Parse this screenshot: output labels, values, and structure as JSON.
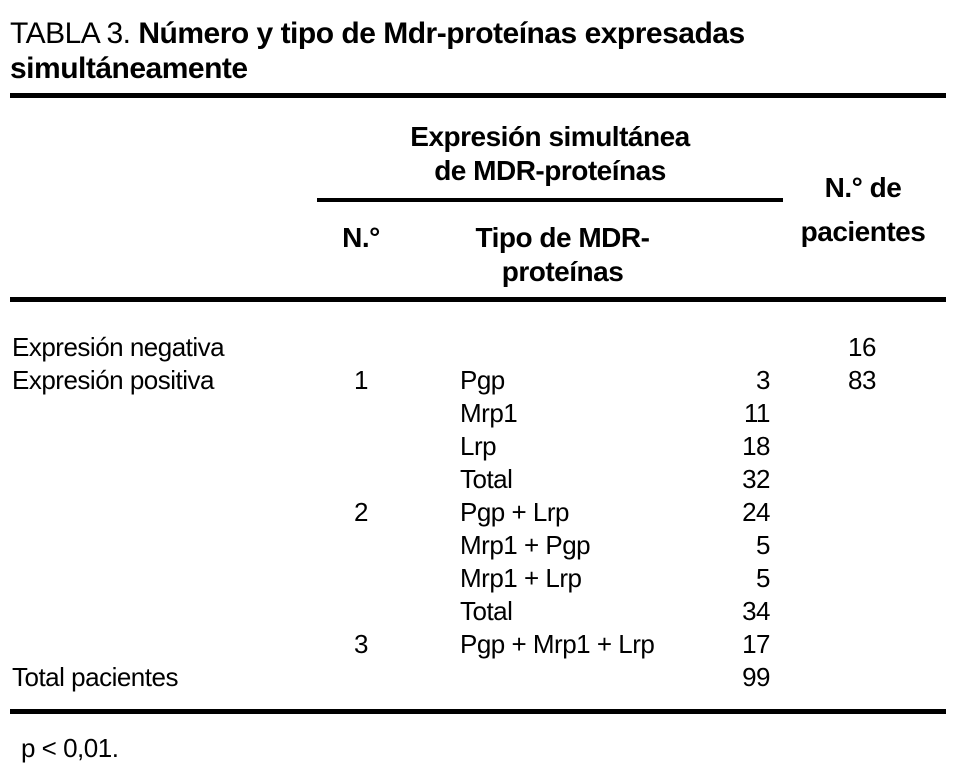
{
  "page": {
    "title_prefix": "TABLA 3.",
    "title_bold": "Número y tipo de Mdr-proteínas expresadas simultáneamente",
    "footnote": "p < 0,01."
  },
  "table": {
    "header": {
      "group_line1": "Expresión simultánea",
      "group_line2": "de MDR-proteínas",
      "col_n": "N.°",
      "col_tipo_line1": "Tipo de MDR-",
      "col_tipo_line2": "proteínas",
      "col_pacientes_line1": "N.° de",
      "col_pacientes_line2": "pacientes"
    },
    "rows": [
      {
        "label": "Expresión negativa",
        "n": "",
        "tipo": "",
        "count": "",
        "pacientes": "16"
      },
      {
        "label": "Expresión positiva",
        "n": "1",
        "tipo": "Pgp",
        "count": "3",
        "pacientes": "83"
      },
      {
        "label": "",
        "n": "",
        "tipo": "Mrp1",
        "count": "11",
        "pacientes": ""
      },
      {
        "label": "",
        "n": "",
        "tipo": "Lrp",
        "count": "18",
        "pacientes": ""
      },
      {
        "label": "",
        "n": "",
        "tipo": "Total",
        "count": "32",
        "pacientes": ""
      },
      {
        "label": "",
        "n": "2",
        "tipo": "Pgp + Lrp",
        "count": "24",
        "pacientes": ""
      },
      {
        "label": "",
        "n": "",
        "tipo": "Mrp1 + Pgp",
        "count": "5",
        "pacientes": ""
      },
      {
        "label": "",
        "n": "",
        "tipo": "Mrp1 + Lrp",
        "count": "5",
        "pacientes": ""
      },
      {
        "label": "",
        "n": "",
        "tipo": "Total",
        "count": "34",
        "pacientes": ""
      },
      {
        "label": "",
        "n": "3",
        "tipo": "Pgp + Mrp1 + Lrp",
        "count": "17",
        "pacientes": ""
      },
      {
        "label": "Total pacientes",
        "n": "",
        "tipo": "",
        "count": "99",
        "pacientes": ""
      }
    ]
  }
}
